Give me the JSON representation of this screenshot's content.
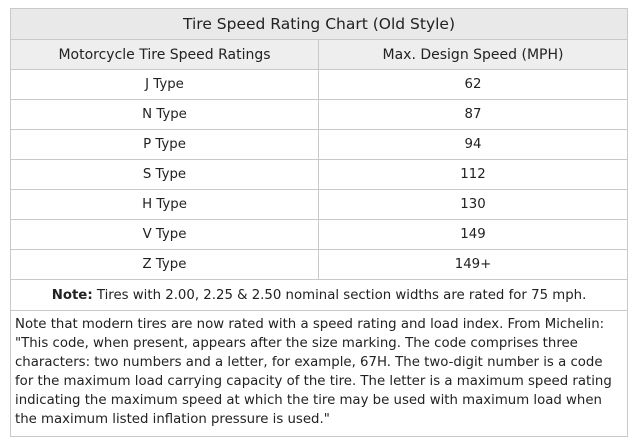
{
  "table": {
    "title": "Tire Speed Rating Chart (Old Style)",
    "headers": [
      "Motorcycle Tire Speed Ratings",
      "Max. Design Speed (MPH)"
    ],
    "rows": [
      {
        "type": "J Type",
        "speed": "62"
      },
      {
        "type": "N Type",
        "speed": "87"
      },
      {
        "type": "P Type",
        "speed": "94"
      },
      {
        "type": "S Type",
        "speed": "112"
      },
      {
        "type": "H Type",
        "speed": "130"
      },
      {
        "type": "V Type",
        "speed": "149"
      },
      {
        "type": "Z Type",
        "speed": "149+"
      }
    ],
    "note_label": "Note:",
    "note_text": " Tires with 2.00, 2.25 & 2.50 nominal section widths are rated for 75 mph.",
    "paragraph": "Note that modern tires are now rated with a speed rating and load index. From Michelin: \"This code, when present, appears after the size marking. The code comprises three characters: two numbers and a letter, for example, 67H. The two-digit number is a code for the maximum load carrying capacity of the tire. The letter is a maximum speed rating indicating the maximum speed at which the tire may be used with maximum load when the maximum listed inflation pressure is used.\""
  }
}
